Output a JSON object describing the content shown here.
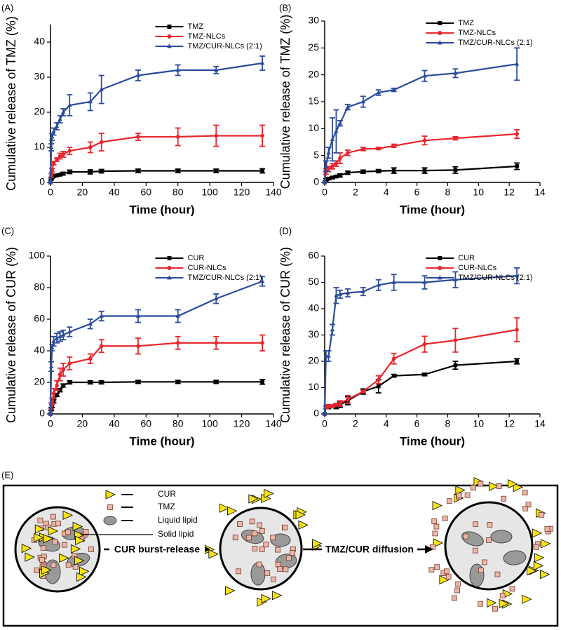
{
  "chart_data": [
    {
      "type": "line",
      "panel": "(A)",
      "xlabel": "Time (hour)",
      "ylabel": "Cumulative release of TMZ (%)",
      "xlim": [
        0,
        140
      ],
      "xticks": [
        0,
        20,
        40,
        60,
        80,
        100,
        120,
        140
      ],
      "ylim": [
        0,
        45
      ],
      "yticks": [
        0,
        10,
        20,
        30,
        40
      ],
      "x": [
        0,
        0.5,
        1,
        2,
        4,
        6,
        8,
        12,
        25,
        32,
        55,
        80,
        104,
        133
      ],
      "series": [
        {
          "name": "TMZ",
          "color": "#000000",
          "marker": "square",
          "values": [
            0,
            1,
            1.5,
            1.8,
            2,
            2.2,
            2.5,
            3,
            3,
            3.2,
            3.3,
            3.3,
            3.3,
            3.3
          ],
          "errors": [
            0,
            0.3,
            0.3,
            0.3,
            0.3,
            0.3,
            0.4,
            0.5,
            0.6,
            0.5,
            0.5,
            0.5,
            0.5,
            0.6
          ]
        },
        {
          "name": "TMZ-NLCs",
          "color": "#e8262d",
          "marker": "circle",
          "values": [
            0,
            2,
            3.5,
            5.5,
            6.5,
            7.5,
            8,
            9,
            10,
            11.5,
            13,
            13,
            13.3,
            13.3
          ],
          "errors": [
            0,
            0.5,
            0.5,
            0.5,
            0.5,
            0.8,
            0.8,
            1,
            1.5,
            2.5,
            1,
            2.5,
            3,
            3
          ]
        },
        {
          "name": "TMZ/CUR-NLCs (2:1)",
          "color": "#2a4c9c",
          "marker": "triangle",
          "values": [
            0,
            10,
            13,
            14.5,
            16,
            18,
            20,
            22,
            23,
            26.5,
            30.5,
            32,
            32,
            34
          ],
          "errors": [
            0,
            1,
            1,
            1,
            1,
            1,
            1,
            3,
            2.5,
            4,
            1.5,
            1.5,
            1,
            2
          ]
        }
      ]
    },
    {
      "type": "line",
      "panel": "(B)",
      "xlabel": "Time (hour)",
      "ylabel": "Cumulative release of TMZ (%)",
      "xlim": [
        0,
        14
      ],
      "xticks": [
        0,
        2,
        4,
        6,
        8,
        10,
        12,
        14
      ],
      "ylim": [
        0,
        30
      ],
      "yticks": [
        0,
        5,
        10,
        15,
        20,
        25,
        30
      ],
      "x": [
        0,
        0.083,
        0.25,
        0.5,
        0.75,
        1,
        1.5,
        2.5,
        3.5,
        4.5,
        6.5,
        8.5,
        12.5
      ],
      "series": [
        {
          "name": "TMZ",
          "color": "#000000",
          "marker": "square",
          "values": [
            0,
            0.5,
            0.7,
            0.9,
            1.1,
            1.3,
            1.8,
            2,
            2.1,
            2.2,
            2.2,
            2.3,
            3
          ],
          "errors": [
            0,
            0.2,
            0.2,
            0.2,
            0.2,
            0.3,
            0.3,
            0.3,
            0.3,
            0.5,
            0.5,
            0.6,
            0.6
          ]
        },
        {
          "name": "TMZ-NLCs",
          "color": "#e8262d",
          "marker": "circle",
          "values": [
            0,
            2,
            2.5,
            3,
            3.5,
            4.5,
            5.5,
            6.2,
            6.3,
            6.8,
            7.8,
            8.2,
            9
          ],
          "errors": [
            0,
            0.5,
            0.5,
            0.5,
            0.5,
            1,
            0.5,
            0.3,
            0.2,
            0.3,
            0.8,
            0.3,
            0.8
          ]
        },
        {
          "name": "TMZ/CUR-NLCs (2:1)",
          "color": "#2a4c9c",
          "marker": "triangle",
          "values": [
            0,
            3,
            5.5,
            8,
            9.5,
            11,
            14,
            15,
            16.7,
            17.2,
            19.8,
            20.3,
            22
          ],
          "errors": [
            0,
            1,
            1,
            4,
            4,
            0.5,
            0.5,
            1,
            0.5,
            0.3,
            1,
            0.8,
            3
          ]
        }
      ]
    },
    {
      "type": "line",
      "panel": "(C)",
      "xlabel": "Time (hour)",
      "ylabel": "Cumulative release of CUR (%)",
      "xlim": [
        0,
        140
      ],
      "xticks": [
        0,
        20,
        40,
        60,
        80,
        100,
        120,
        140
      ],
      "ylim": [
        0,
        100
      ],
      "yticks": [
        0,
        20,
        40,
        60,
        80,
        100
      ],
      "x": [
        0,
        0.5,
        1,
        2,
        4,
        6,
        8,
        12,
        25,
        32,
        55,
        80,
        104,
        133
      ],
      "series": [
        {
          "name": "CUR",
          "color": "#000000",
          "marker": "square",
          "values": [
            0,
            3,
            5,
            8,
            12,
            15,
            18,
            20,
            20,
            20,
            20.3,
            20.3,
            20.3,
            20.3
          ],
          "errors": [
            0,
            1,
            1,
            1,
            1,
            1,
            1,
            1,
            1,
            1,
            1,
            1,
            1,
            1.5
          ]
        },
        {
          "name": "CUR-NLCs",
          "color": "#e8262d",
          "marker": "circle",
          "values": [
            0,
            5,
            8,
            13,
            18,
            25,
            28,
            32,
            35,
            43,
            43,
            45,
            45,
            45
          ],
          "errors": [
            0,
            2,
            2,
            3,
            3,
            4,
            4,
            4,
            3,
            4,
            5,
            4,
            4,
            5
          ]
        },
        {
          "name": "TMZ/CUR-NLCs (2:1)",
          "color": "#2a4c9c",
          "marker": "triangle",
          "values": [
            0,
            30,
            42,
            46,
            48,
            49,
            50,
            52,
            57,
            62,
            62,
            62,
            73,
            84
          ],
          "errors": [
            0,
            3,
            2,
            3,
            3,
            3,
            3,
            3,
            3,
            3,
            4,
            4,
            3,
            3
          ]
        }
      ]
    },
    {
      "type": "line",
      "panel": "(D)",
      "xlabel": "Time (hour)",
      "ylabel": "Cumulative release of CUR (%)",
      "xlim": [
        0,
        14
      ],
      "xticks": [
        0,
        2,
        4,
        6,
        8,
        10,
        12,
        14
      ],
      "ylim": [
        0,
        60
      ],
      "yticks": [
        0,
        10,
        20,
        30,
        40,
        50,
        60
      ],
      "x": [
        0,
        0.083,
        0.25,
        0.5,
        0.75,
        1,
        1.5,
        2.5,
        3.5,
        4.5,
        6.5,
        8.5,
        12.5
      ],
      "series": [
        {
          "name": "CUR",
          "color": "#000000",
          "marker": "square",
          "values": [
            0,
            2.5,
            2.5,
            3,
            3,
            3.5,
            5,
            8.5,
            10.5,
            14.5,
            15,
            18.5,
            20
          ],
          "errors": [
            0,
            0.5,
            0.5,
            0.5,
            1,
            1,
            1.5,
            1,
            2.5,
            0.5,
            0.5,
            1.5,
            1
          ]
        },
        {
          "name": "CUR-NLCs",
          "color": "#e8262d",
          "marker": "circle",
          "values": [
            0,
            2.5,
            3,
            3,
            3.5,
            4,
            5.5,
            8.5,
            13,
            21,
            26.5,
            28,
            32
          ],
          "errors": [
            0,
            0.5,
            0.5,
            0.5,
            0.5,
            1,
            1.5,
            0.5,
            1.5,
            2,
            3,
            4.5,
            4.5
          ]
        },
        {
          "name": "TMZ/CUR-NLCs (2:1)",
          "color": "#2a4c9c",
          "marker": "triangle",
          "values": [
            0,
            22,
            22,
            32,
            45,
            45.5,
            46,
            46.5,
            49,
            50,
            50,
            51,
            52.5
          ],
          "errors": [
            0,
            2,
            2,
            2,
            3,
            1.5,
            1.5,
            1.5,
            2,
            3,
            2.5,
            3,
            3
          ]
        }
      ]
    }
  ],
  "diagram": {
    "panel": "(E)",
    "legend": [
      "CUR",
      "TMZ",
      "Liquid lipid",
      "Solid lipid"
    ],
    "arrows": [
      "CUR burst-release",
      "TMZ/CUR diffusion"
    ]
  }
}
